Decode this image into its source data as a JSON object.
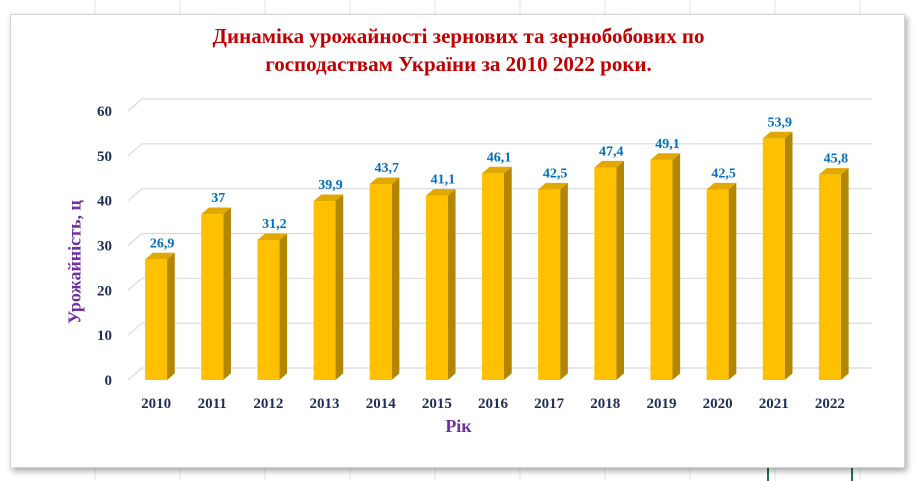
{
  "chart_data": {
    "type": "bar",
    "title_lines": [
      "Динаміка урожайності зернових та зернобобових по",
      "господаствам України за 2010 2022 роки."
    ],
    "xlabel": "Рік",
    "ylabel": "Урожайність, ц",
    "categories": [
      "2010",
      "2011",
      "2012",
      "2013",
      "2014",
      "2015",
      "2016",
      "2017",
      "2018",
      "2019",
      "2020",
      "2021",
      "2022"
    ],
    "values": [
      26.9,
      37,
      31.2,
      39.9,
      43.7,
      41.1,
      46.1,
      42.5,
      47.4,
      49.1,
      42.5,
      53.9,
      45.8
    ],
    "data_labels": [
      "26,9",
      "37",
      "31,2",
      "39,9",
      "43,7",
      "41,1",
      "46,1",
      "42,5",
      "47,4",
      "49,1",
      "42,5",
      "53,9",
      "45,8"
    ],
    "ylim": [
      0,
      60
    ],
    "yticks": [
      0,
      10,
      20,
      30,
      40,
      50,
      60
    ],
    "grid": true,
    "legend": "none",
    "colors": {
      "bar_front": "#ffc000",
      "bar_side": "#b38600",
      "bar_top": "#e0a800",
      "title": "#c00000",
      "axis_titles": "#7030a0",
      "data_labels": "#0070c0",
      "tick_labels": "#1f2d5a",
      "gridlines": "#d9d9d9"
    }
  }
}
